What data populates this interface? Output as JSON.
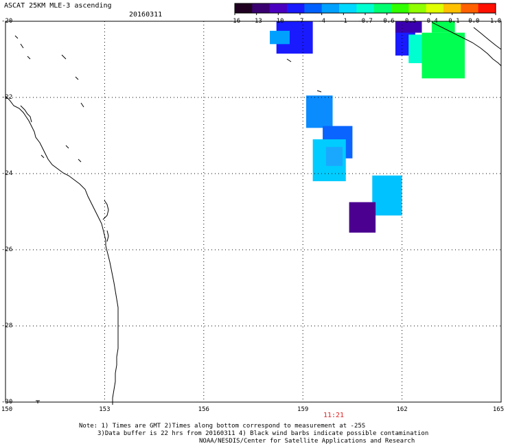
{
  "header": {
    "title": "ASCAT 25KM MLE-3 ascending",
    "date": "20160311"
  },
  "colorbar": {
    "ticks": [
      "-16",
      "-13",
      "-10",
      "-7",
      "-4",
      "-1",
      "-0.7",
      "-0.6",
      "-0.5",
      "-0.4",
      "-0.1",
      "0.0",
      "1.0"
    ],
    "colors": [
      "#200020",
      "#3a0070",
      "#4b00c0",
      "#1a1aff",
      "#0060ff",
      "#00a0ff",
      "#00d8ff",
      "#00ffd0",
      "#00ff70",
      "#30ff00",
      "#90ff00",
      "#e0ff00",
      "#ffc000",
      "#ff6000",
      "#ff1000"
    ]
  },
  "map": {
    "lon_range": [
      150,
      165
    ],
    "lat_range": [
      -20,
      -30
    ],
    "lon_ticks": [
      "150",
      "153",
      "156",
      "159",
      "162",
      "165"
    ],
    "lat_ticks": [
      "-20",
      "-22",
      "-24",
      "-26",
      "-28",
      "-30"
    ],
    "grid": true,
    "pass_time": "11:21",
    "cells": [
      {
        "lon0": 158.2,
        "lat0": -20.0,
        "lon1": 159.3,
        "lat1": -20.85,
        "color": "#1a1aff"
      },
      {
        "lon0": 158.0,
        "lat0": -20.25,
        "lon1": 158.6,
        "lat1": -20.6,
        "color": "#00a0ff"
      },
      {
        "lon0": 159.1,
        "lat0": -21.95,
        "lon1": 159.9,
        "lat1": -22.8,
        "color": "#0a8cff"
      },
      {
        "lon0": 159.6,
        "lat0": -22.75,
        "lon1": 160.5,
        "lat1": -23.6,
        "color": "#0a64ff"
      },
      {
        "lon0": 159.3,
        "lat0": -23.1,
        "lon1": 160.3,
        "lat1": -24.2,
        "color": "#00ccff"
      },
      {
        "lon0": 159.7,
        "lat0": -23.3,
        "lon1": 160.2,
        "lat1": -23.8,
        "color": "#1aa8ff"
      },
      {
        "lon0": 161.1,
        "lat0": -24.05,
        "lon1": 162.0,
        "lat1": -25.1,
        "color": "#00c2ff"
      },
      {
        "lon0": 160.4,
        "lat0": -24.75,
        "lon1": 161.2,
        "lat1": -25.55,
        "color": "#4b0090"
      },
      {
        "lon0": 161.8,
        "lat0": -20.1,
        "lon1": 162.4,
        "lat1": -20.9,
        "color": "#1a1aff"
      },
      {
        "lon0": 161.8,
        "lat0": -20.0,
        "lon1": 162.6,
        "lat1": -20.3,
        "color": "#3a00b0"
      },
      {
        "lon0": 162.2,
        "lat0": -20.35,
        "lon1": 163.3,
        "lat1": -21.1,
        "color": "#00ffd0"
      },
      {
        "lon0": 162.6,
        "lat0": -20.3,
        "lon1": 163.9,
        "lat1": -21.5,
        "color": "#00ff50"
      },
      {
        "lon0": 162.9,
        "lat0": -20.0,
        "lon1": 163.6,
        "lat1": -20.3,
        "color": "#00ff50"
      }
    ],
    "pixel_grid": {
      "x0": 8,
      "x1": 730,
      "y0": 31,
      "y1": 586
    }
  },
  "notes": [
    "Note: 1) Times are GMT 2)Times along bottom correspond to measurement at -25S",
    "3)Data buffer is 22 hrs from 20160311 4) Black wind barbs indicate possible contamination",
    "NOAA/NESDIS/Center for Satellite Applications and Research"
  ]
}
